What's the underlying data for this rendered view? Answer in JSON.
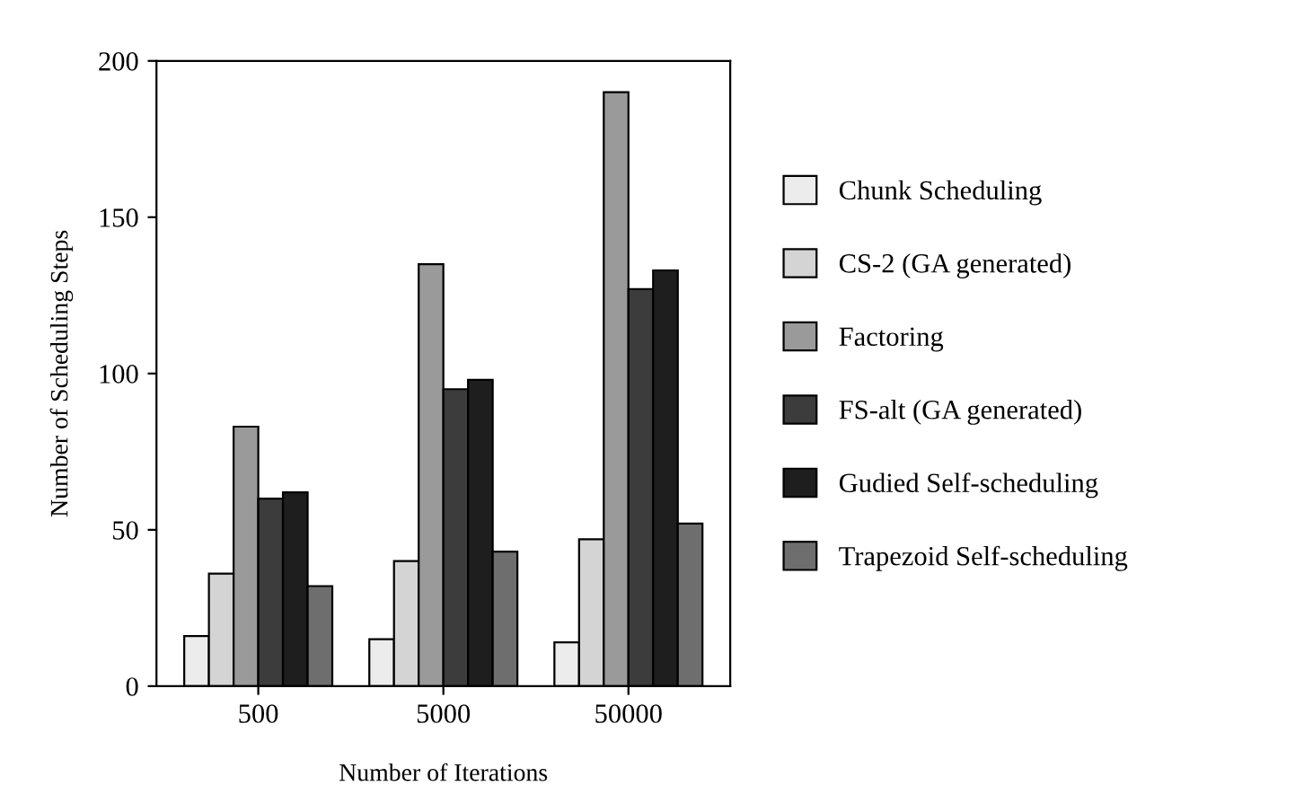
{
  "chart_data": {
    "type": "bar",
    "xlabel": "Number of Iterations",
    "ylabel": "Number of Scheduling Steps",
    "categories": [
      "500",
      "5000",
      "50000"
    ],
    "series": [
      {
        "name": "Chunk Scheduling",
        "color": "#ececec",
        "values": [
          16,
          15,
          14
        ]
      },
      {
        "name": "CS-2 (GA generated)",
        "color": "#d4d4d4",
        "values": [
          36,
          40,
          47
        ]
      },
      {
        "name": "Factoring",
        "color": "#9a9a9a",
        "values": [
          83,
          135,
          190
        ]
      },
      {
        "name": "FS-alt (GA generated)",
        "color": "#3c3c3c",
        "values": [
          60,
          95,
          127
        ]
      },
      {
        "name": "Gudied Self-scheduling",
        "color": "#1e1e1e",
        "values": [
          62,
          98,
          133
        ]
      },
      {
        "name": "Trapezoid Self-scheduling",
        "color": "#6e6e6e",
        "values": [
          32,
          43,
          52
        ]
      }
    ],
    "ylim": [
      0,
      200
    ],
    "yticks": [
      0,
      50,
      100,
      150,
      200
    ],
    "grid": false,
    "legend": "right"
  }
}
